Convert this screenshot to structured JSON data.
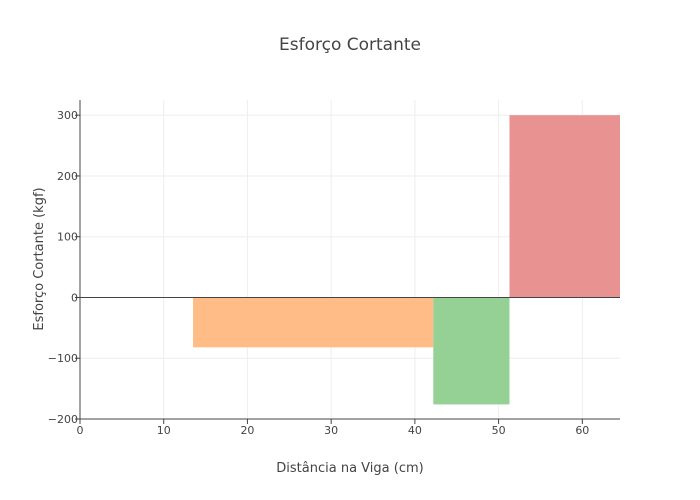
{
  "chart_data": {
    "type": "area",
    "title": "Esforço Cortante",
    "xlabel": "Distância na Viga (cm)",
    "ylabel": "Esforço Cortante (kgf)",
    "xlim": [
      0,
      64.5
    ],
    "ylim": [
      -200,
      325
    ],
    "x_ticks": [
      0,
      10,
      20,
      30,
      40,
      50,
      60
    ],
    "y_ticks": [
      -200,
      -100,
      0,
      100,
      200,
      300
    ],
    "grid": true,
    "series": [
      {
        "x_start": 13.5,
        "x_end": 42.2,
        "value": -82,
        "color": "#ffbb85"
      },
      {
        "x_start": 42.2,
        "x_end": 51.3,
        "value": -176,
        "color": "#93cf92"
      },
      {
        "x_start": 51.3,
        "x_end": 64.5,
        "value": 300,
        "color": "#e8908f"
      }
    ]
  }
}
